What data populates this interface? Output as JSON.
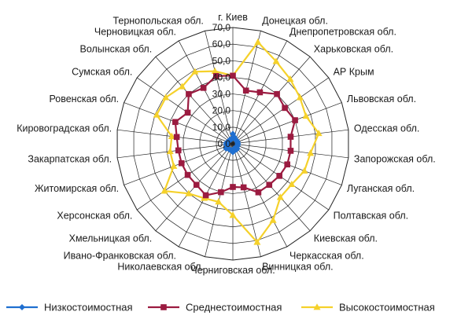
{
  "chart_data": {
    "type": "radar",
    "categories": [
      "г. Киев",
      "Донецкая обл.",
      "Днепропетровская обл.",
      "Харьковская обл.",
      "АР Крым",
      "Львовская обл.",
      "Одесская обл.",
      "Запорожская обл.",
      "Луганская обл.",
      "Полтавская обл.",
      "Киевская обл.",
      "Черкасская обл.",
      "Винницкая обл.",
      "Черниговская обл.",
      "Николаевская обл.",
      "Ивано-Франковская обл.",
      "Хмельницкая обл.",
      "Херсонская обл.",
      "Житомирская обл.",
      "Закарпатская обл.",
      "Кировоградская обл.",
      "Ровенская обл.",
      "Сумская обл.",
      "Волынская обл.",
      "Черновицкая обл.",
      "Тернопольская обл."
    ],
    "series": [
      {
        "name": "Низкостоимостная",
        "color": "#1f6fd0",
        "marker": "diamond",
        "values": [
          6,
          4,
          3,
          3,
          3,
          3,
          3,
          3,
          3,
          3,
          4,
          4,
          3,
          5,
          4,
          4,
          4,
          5,
          4,
          4,
          4,
          3,
          3,
          3,
          3,
          3
        ]
      },
      {
        "name": "Среднестоимостная",
        "color": "#9b1b40",
        "marker": "square",
        "values": [
          41,
          33,
          35,
          40,
          38,
          40,
          35,
          35,
          35,
          34,
          33,
          33,
          27,
          26,
          30,
          35,
          33,
          33,
          33,
          33,
          34,
          37,
          33,
          40,
          38,
          42
        ]
      },
      {
        "name": "Высокостоимостная",
        "color": "#f5d12b",
        "marker": "triangle",
        "values": [
          41,
          63,
          56,
          52,
          49,
          47,
          52,
          47,
          46,
          43,
          43,
          52,
          61,
          43,
          36,
          37,
          40,
          50,
          38,
          38,
          37,
          49,
          49,
          46,
          49,
          45
        ]
      }
    ],
    "radial_axis": {
      "min": 0,
      "max": 70,
      "step": 10,
      "tick_labels": [
        "0,0",
        "10,0",
        "20,0",
        "30,0",
        "40,0",
        "50,0",
        "60,0",
        "70,0"
      ]
    },
    "grid": true,
    "legend_position": "bottom"
  }
}
